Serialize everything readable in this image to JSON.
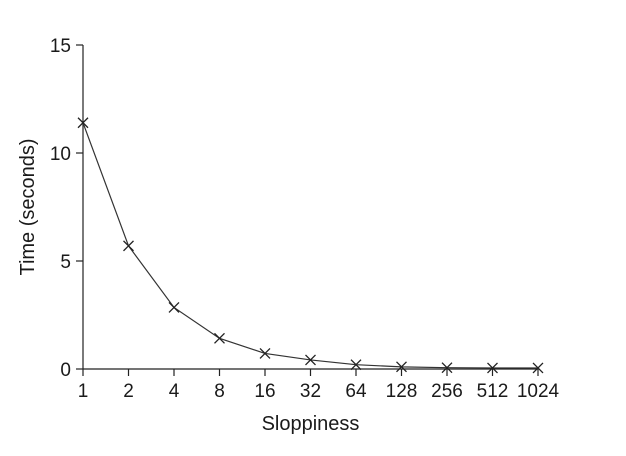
{
  "chart_data": {
    "type": "line",
    "title": "",
    "xlabel": "Sloppiness",
    "ylabel": "Time (seconds)",
    "x_scale": "log2",
    "categories": [
      "1",
      "2",
      "4",
      "8",
      "16",
      "32",
      "64",
      "128",
      "256",
      "512",
      "1024"
    ],
    "x": [
      1,
      2,
      4,
      8,
      16,
      32,
      64,
      128,
      256,
      512,
      1024
    ],
    "series": [
      {
        "values": [
          11.4,
          5.7,
          2.85,
          1.42,
          0.72,
          0.42,
          0.2,
          0.1,
          0.06,
          0.05,
          0.05
        ],
        "marker": "x",
        "color": "#333333"
      }
    ],
    "y_ticks": [
      0,
      5,
      10,
      15
    ],
    "ylim": [
      0,
      15
    ],
    "grid": false,
    "legend": "none"
  }
}
